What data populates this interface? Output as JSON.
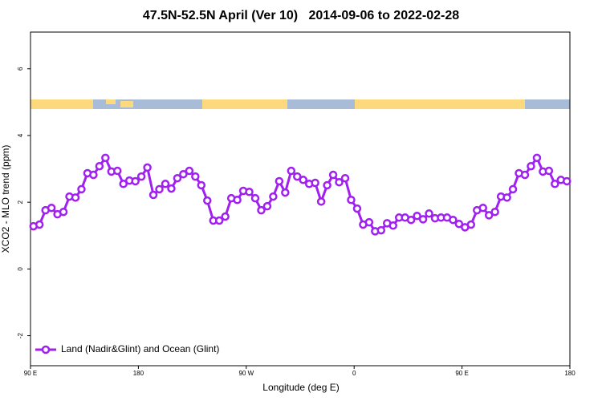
{
  "chart_data": {
    "type": "line",
    "title": "47.5N-52.5N April (Ver 10)   2014-09-06 to 2022-02-28",
    "xlabel": "Longitude (deg E)",
    "ylabel": "XCO2 - MLO trend (ppm)",
    "xlim": [
      90,
      540
    ],
    "xticks": [
      {
        "value": 90,
        "label": "90 E"
      },
      180,
      {
        "value": 270,
        "label": "90 W"
      },
      {
        "value": 360,
        "label": "0"
      },
      {
        "value": 450,
        "label": "90 E"
      },
      {
        "value": 540,
        "label": "180"
      }
    ],
    "ylim": [
      -2.9,
      7.1
    ],
    "yticks": [
      -2,
      0,
      2,
      4,
      6
    ],
    "legend": "bottomleft",
    "x": [
      92.5,
      97.5,
      102.5,
      107.5,
      112.5,
      117.5,
      122.5,
      127.5,
      132.5,
      137.5,
      142.5,
      147.5,
      152.5,
      157.5,
      162.5,
      167.5,
      172.5,
      177.5,
      182.5,
      187.5,
      192.5,
      197.5,
      202.5,
      207.5,
      212.5,
      217.5,
      222.5,
      227.5,
      232.5,
      237.5,
      242.5,
      247.5,
      252.5,
      257.5,
      262.5,
      267.5,
      272.5,
      277.5,
      282.5,
      287.5,
      292.5,
      297.5,
      302.5,
      307.5,
      312.5,
      317.5,
      322.5,
      327.5,
      332.5,
      337.5,
      342.5,
      347.5,
      352.5,
      357.5,
      362.5,
      367.5,
      372.5,
      377.5,
      382.5,
      387.5,
      392.5,
      397.5,
      402.5,
      407.5,
      412.5,
      417.5,
      422.5,
      427.5,
      432.5,
      437.5,
      442.5,
      447.5,
      452.5,
      457.5,
      462.5,
      467.5,
      472.5,
      477.5,
      482.5,
      487.5,
      492.5,
      497.5,
      502.5,
      507.5,
      512.5,
      517.5,
      522.5,
      527.5,
      532.5,
      537.5
    ],
    "series": [
      {
        "name": "Land (Nadir&Glint) and Ocean (Glint)",
        "color": "#a020f0",
        "values": [
          1.28,
          1.33,
          1.76,
          1.83,
          1.64,
          1.71,
          2.17,
          2.14,
          2.39,
          2.87,
          2.82,
          3.08,
          3.33,
          2.92,
          2.94,
          2.55,
          2.65,
          2.63,
          2.77,
          3.04,
          2.22,
          2.39,
          2.55,
          2.41,
          2.72,
          2.84,
          2.94,
          2.77,
          2.51,
          2.05,
          1.45,
          1.45,
          1.57,
          2.12,
          2.07,
          2.34,
          2.31,
          2.12,
          1.76,
          1.88,
          2.17,
          2.63,
          2.29,
          2.94,
          2.77,
          2.67,
          2.55,
          2.58,
          2.02,
          2.51,
          2.82,
          2.6,
          2.72,
          2.07,
          1.81,
          1.33,
          1.4,
          1.13,
          1.16,
          1.37,
          1.3,
          1.54,
          1.54,
          1.47,
          1.59,
          1.49,
          1.66,
          1.52,
          1.54,
          1.54,
          1.47,
          1.35,
          1.25,
          1.33,
          1.76,
          1.83,
          1.61,
          1.71,
          2.17,
          2.14,
          2.39,
          2.87,
          2.82,
          3.08,
          3.33,
          2.92,
          2.94,
          2.55,
          2.67,
          2.63
        ]
      }
    ]
  }
}
